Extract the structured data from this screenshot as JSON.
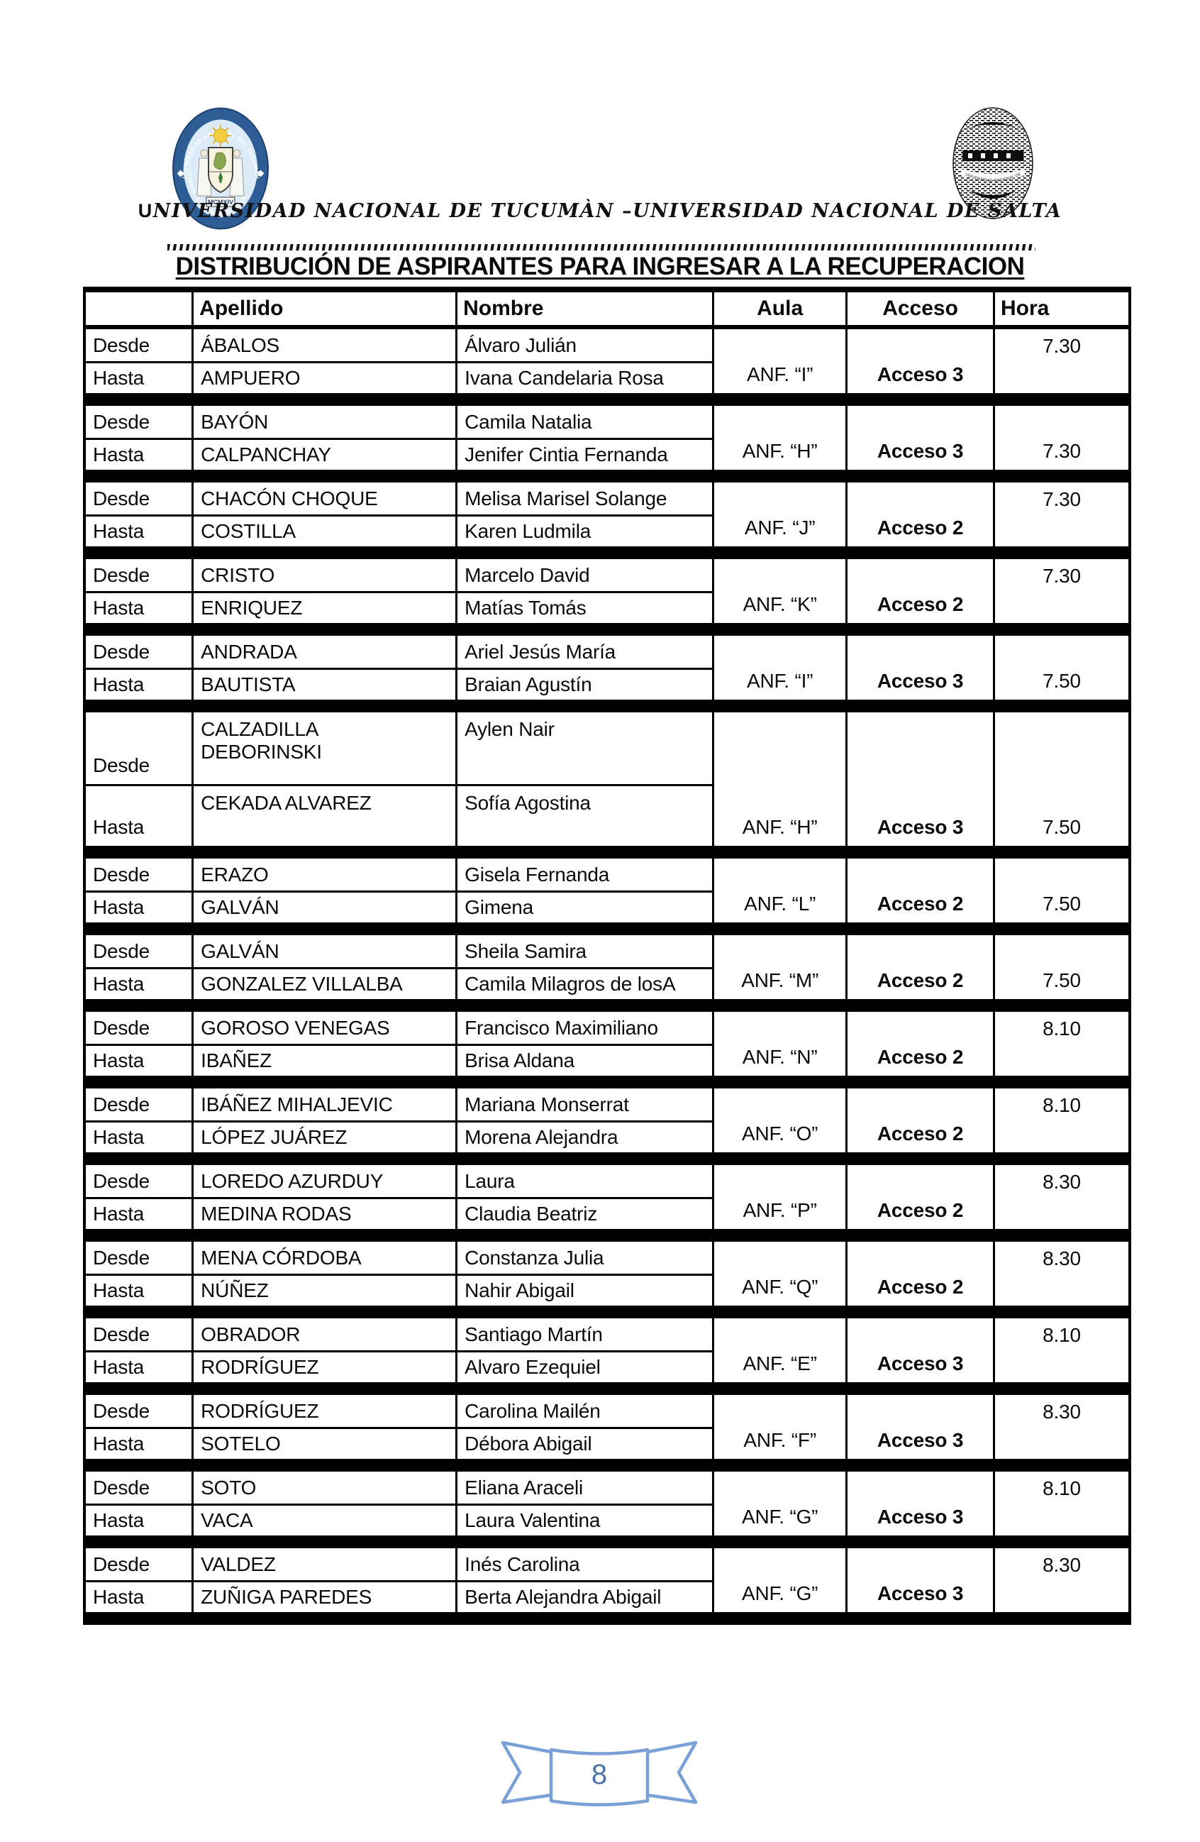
{
  "header": {
    "institutions_line": "UNIVERSIDAD NACIONAL DE TUCUMÀN –UNIVERSIDAD NACIONAL DE SALTA",
    "unt_seal": {
      "icon": "unt-crest-seal-icon",
      "ring_text_top": "UNIVERSIDAD·NACIONAL·DEL·TUCUMAN",
      "ring_text_bottom": "PEDES·IN·TERRA·AD·SIDERA·VISUS",
      "banner_text": "MCMXIV"
    },
    "unsa_seal": {
      "icon": "unsa-engraved-seal-icon",
      "ring_text": "UNIVERSIDAD NACIONAL DE SALTA"
    }
  },
  "title": "DISTRIBUCIÓN DE ASPIRANTES PARA INGRESAR A LA RECUPERACION",
  "table": {
    "column_headers": {
      "apellido": "Apellido",
      "nombre": "Nombre",
      "aula": "Aula",
      "acceso": "Acceso",
      "hora": "Hora"
    },
    "row_labels": {
      "desde": "Desde",
      "hasta": "Hasta"
    },
    "blocks": [
      {
        "desde_apellido": "ÁBALOS",
        "desde_nombre": "Álvaro Julián",
        "hasta_apellido": "AMPUERO",
        "hasta_nombre": "Ivana Candelaria Rosa",
        "aula": "ANF. “I”",
        "acceso": "Acceso 3",
        "hora": "7.30",
        "hora_pos": "top",
        "tall": false
      },
      {
        "desde_apellido": "BAYÓN",
        "desde_nombre": "Camila Natalia",
        "hasta_apellido": "CALPANCHAY",
        "hasta_nombre": "Jenifer Cintia Fernanda",
        "aula": "ANF. “H”",
        "acceso": "Acceso 3",
        "hora": "7.30",
        "hora_pos": "bottom",
        "tall": false
      },
      {
        "desde_apellido": "CHACÓN CHOQUE",
        "desde_nombre": "Melisa Marisel Solange",
        "hasta_apellido": "COSTILLA",
        "hasta_nombre": "Karen Ludmila",
        "aula": "ANF. “J”",
        "acceso": "Acceso 2",
        "hora": "7.30",
        "hora_pos": "top",
        "tall": false
      },
      {
        "desde_apellido": "CRISTO",
        "desde_nombre": "Marcelo David",
        "hasta_apellido": "ENRIQUEZ",
        "hasta_nombre": "Matías Tomás",
        "aula": "ANF. “K”",
        "acceso": "Acceso 2",
        "hora": "7.30",
        "hora_pos": "top",
        "tall": false
      },
      {
        "desde_apellido": "ANDRADA",
        "desde_nombre": "Ariel Jesús María",
        "hasta_apellido": "BAUTISTA",
        "hasta_nombre": "Braian Agustín",
        "aula": "ANF. “I”",
        "acceso": "Acceso 3",
        "hora": "7.50",
        "hora_pos": "bottom",
        "tall": false
      },
      {
        "desde_apellido": "CALZADILLA\nDEBORINSKI",
        "desde_nombre": "Aylen Nair",
        "hasta_apellido": "CEKADA ALVAREZ",
        "hasta_nombre": "Sofía Agostina",
        "aula": "ANF. “H”",
        "acceso": "Acceso 3",
        "hora": "7.50",
        "hora_pos": "bottom",
        "tall": true
      },
      {
        "desde_apellido": "ERAZO",
        "desde_nombre": "Gisela Fernanda",
        "hasta_apellido": "GALVÁN",
        "hasta_nombre": "Gimena",
        "aula": "ANF. “L”",
        "acceso": "Acceso 2",
        "hora": "7.50",
        "hora_pos": "bottom",
        "tall": false
      },
      {
        "desde_apellido": "GALVÁN",
        "desde_nombre": "Sheila Samira",
        "hasta_apellido": "GONZALEZ VILLALBA",
        "hasta_nombre": "Camila Milagros de losA",
        "aula": "ANF. “M”",
        "acceso": "Acceso 2",
        "hora": "7.50",
        "hora_pos": "bottom",
        "tall": false
      },
      {
        "desde_apellido": "GOROSO VENEGAS",
        "desde_nombre": "Francisco Maximiliano",
        "hasta_apellido": "IBAÑEZ",
        "hasta_nombre": "Brisa Aldana",
        "aula": "ANF. “N”",
        "acceso": "Acceso 2",
        "hora": "8.10",
        "hora_pos": "top",
        "tall": false
      },
      {
        "desde_apellido": "IBÁÑEZ MIHALJEVIC",
        "desde_nombre": "Mariana Monserrat",
        "hasta_apellido": "LÓPEZ JUÁREZ",
        "hasta_nombre": "Morena Alejandra",
        "aula": "ANF. “O”",
        "acceso": "Acceso 2",
        "hora": "8.10",
        "hora_pos": "top",
        "tall": false
      },
      {
        "desde_apellido": "LOREDO AZURDUY",
        "desde_nombre": "Laura",
        "hasta_apellido": "MEDINA RODAS",
        "hasta_nombre": "Claudia Beatriz",
        "aula": "ANF. “P”",
        "acceso": "Acceso 2",
        "hora": "8.30",
        "hora_pos": "top",
        "tall": false
      },
      {
        "desde_apellido": "MENA CÓRDOBA",
        "desde_nombre": "Constanza Julia",
        "hasta_apellido": "NÚÑEZ",
        "hasta_nombre": "Nahir Abigail",
        "aula": "ANF. “Q”",
        "acceso": "Acceso 2",
        "hora": "8.30",
        "hora_pos": "top",
        "tall": false
      },
      {
        "desde_apellido": "OBRADOR",
        "desde_nombre": "Santiago Martín",
        "hasta_apellido": "RODRÍGUEZ",
        "hasta_nombre": "Alvaro Ezequiel",
        "aula": "ANF. “E”",
        "acceso": "Acceso 3",
        "hora": "8.10",
        "hora_pos": "top",
        "tall": false
      },
      {
        "desde_apellido": "RODRÍGUEZ",
        "desde_nombre": "Carolina Mailén",
        "hasta_apellido": "SOTELO",
        "hasta_nombre": "Débora Abigail",
        "aula": "ANF. “F”",
        "acceso": "Acceso 3",
        "hora": "8.30",
        "hora_pos": "top",
        "tall": false
      },
      {
        "desde_apellido": "SOTO",
        "desde_nombre": "Eliana Araceli",
        "hasta_apellido": "VACA",
        "hasta_nombre": "Laura Valentina",
        "aula": "ANF. “G”",
        "acceso": "Acceso 3",
        "hora": "8.10",
        "hora_pos": "top",
        "tall": false
      },
      {
        "desde_apellido": "VALDEZ",
        "desde_nombre": "Inés Carolina",
        "hasta_apellido": "ZUÑIGA PAREDES",
        "hasta_nombre": "Berta Alejandra Abigail",
        "aula": "ANF. “G”",
        "acceso": "Acceso 3",
        "hora": "8.30",
        "hora_pos": "top",
        "tall": false
      }
    ]
  },
  "footer": {
    "page_number": "8",
    "ribbon_icon": "blue-ribbon-banner-icon",
    "ribbon_color": "#7aa0d8",
    "number_color": "#4a73a8"
  }
}
